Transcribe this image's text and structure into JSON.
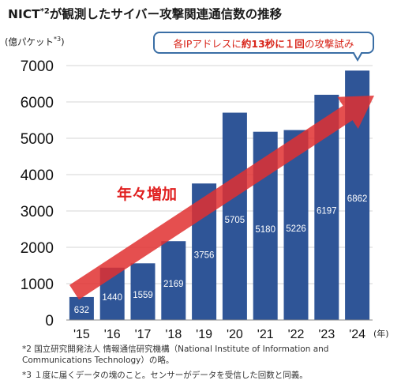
{
  "header": {
    "title": "NICT",
    "title_sup": "*2",
    "title_rest": "が観測したサイバー攻撃関連通信数の推移"
  },
  "callout": {
    "part1": "各IPアドレスに",
    "part2": "約13秒に１回",
    "part3": "の攻撃試み"
  },
  "trend_label": "年々増加",
  "chart_data": {
    "type": "bar",
    "title": "NICTが観測したサイバー攻撃関連通信数の推移",
    "ylabel": "(億パケット",
    "ylabel_sup": "*3",
    "ylabel_close": ")",
    "xlabel": "(年)",
    "categories": [
      "'15",
      "'16",
      "'17",
      "'18",
      "'19",
      "'20",
      "'21",
      "'22",
      "'23",
      "'24"
    ],
    "values": [
      632,
      1440,
      1559,
      2169,
      3756,
      5705,
      5180,
      5226,
      6197,
      6862
    ],
    "value_labels": [
      "632",
      "1440",
      "1559",
      "2169",
      "3756",
      "5705",
      "5180",
      "5226",
      "6197",
      "6862"
    ],
    "yticks": [
      "0",
      "1000",
      "2000",
      "3000",
      "4000",
      "5000",
      "6000",
      "7000"
    ],
    "ylim": [
      0,
      7000
    ],
    "grid": true,
    "bar_color": "#2f5597",
    "trend_arrow_color": "#e03030"
  },
  "notes": {
    "note1": "*2 国立研究開発法人 情報通信研究機構（National Institute of Information and Communications Technology）の略。",
    "note2": "*3 １度に届くデータの塊のこと。センサーがデータを受信した回数と同義。"
  }
}
